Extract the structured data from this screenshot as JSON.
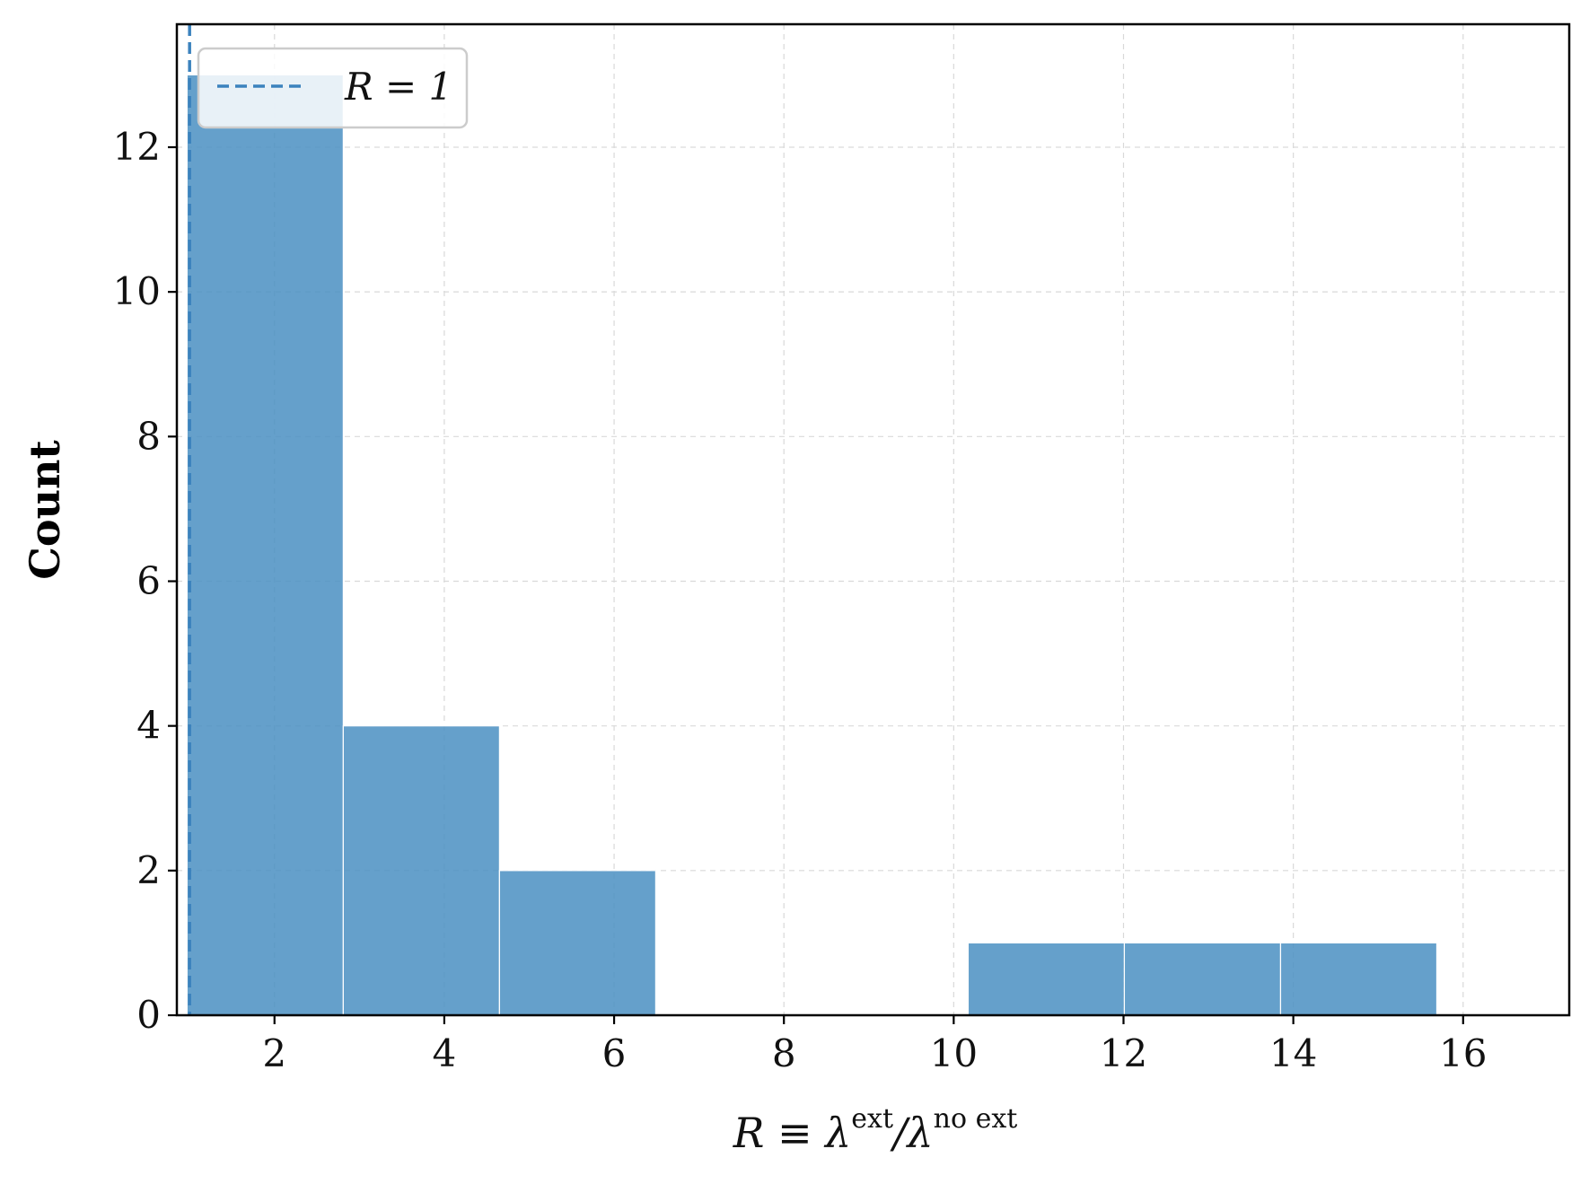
{
  "chart_data": {
    "type": "bar",
    "subtype": "histogram",
    "bins": [
      {
        "x0": 0.97,
        "x1": 2.81,
        "count": 13
      },
      {
        "x0": 2.81,
        "x1": 4.65,
        "count": 4
      },
      {
        "x0": 4.65,
        "x1": 6.49,
        "count": 2
      },
      {
        "x0": 6.49,
        "x1": 8.33,
        "count": 0
      },
      {
        "x0": 8.33,
        "x1": 10.17,
        "count": 0
      },
      {
        "x0": 10.17,
        "x1": 12.01,
        "count": 1
      },
      {
        "x0": 12.01,
        "x1": 13.85,
        "count": 1
      },
      {
        "x0": 13.85,
        "x1": 15.69,
        "count": 1
      }
    ],
    "reference_line": {
      "x": 1,
      "style": "dashed",
      "label": "R = 1"
    },
    "xlabel": {
      "main": "R ≡ λ",
      "sup1": "ext",
      "mid": "/λ",
      "sup2": "no ext"
    },
    "ylabel": "Count",
    "xlim": [
      0.85,
      17.25
    ],
    "ylim": [
      0,
      13.7
    ],
    "xticks": [
      2,
      4,
      6,
      8,
      10,
      12,
      14,
      16
    ],
    "yticks": [
      0,
      2,
      4,
      6,
      8,
      10,
      12
    ],
    "grid": true,
    "legend_position": "top-left",
    "colors": {
      "bar": "#4a8fc2",
      "bar_opacity": 0.85,
      "reference_line": "#3b82bd",
      "grid": "#d9d9d9"
    }
  }
}
